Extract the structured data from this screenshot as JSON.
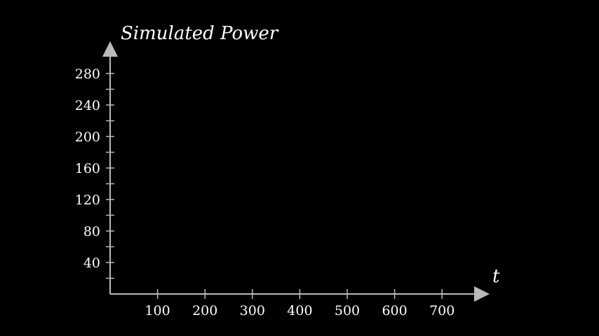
{
  "chart_data": {
    "type": "line",
    "title": "",
    "ylabel": "Simulated Power",
    "xlabel": "t",
    "xlim": [
      0,
      800
    ],
    "ylim": [
      0,
      300
    ],
    "x_ticks_labeled": [
      100,
      200,
      300,
      400,
      500,
      600,
      700
    ],
    "y_ticks_labeled": [
      40,
      80,
      120,
      160,
      200,
      240,
      280
    ],
    "y_minor_tick_step": 20,
    "x_tick_step": 100,
    "series": [],
    "grid": false,
    "axis_color": "#bbbbbb",
    "text_color": "#ffffff",
    "background": "#000000"
  }
}
